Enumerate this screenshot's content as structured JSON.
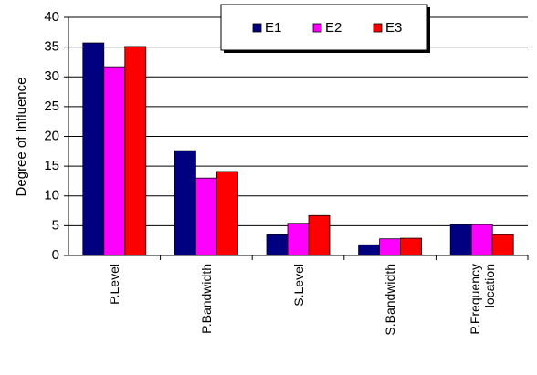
{
  "chart_data": {
    "type": "bar",
    "y_label": "Degree of Influence",
    "categories": [
      "P.Level",
      "P.Bandwidth",
      "S.Level",
      "S.Bandwidth",
      "P.Frequency location"
    ],
    "series": [
      {
        "name": "E1",
        "color": "#000080",
        "values": [
          35.7,
          17.6,
          3.5,
          1.8,
          5.2
        ]
      },
      {
        "name": "E2",
        "color": "#ff00ff",
        "values": [
          31.7,
          13.0,
          5.4,
          2.8,
          5.2
        ]
      },
      {
        "name": "E3",
        "color": "#ff0000",
        "values": [
          35.1,
          14.1,
          6.7,
          2.9,
          3.5
        ]
      }
    ],
    "ylim": [
      0,
      40
    ],
    "yticks": [
      0,
      5,
      10,
      15,
      20,
      25,
      30,
      35,
      40
    ],
    "grid": true,
    "legend": "top"
  }
}
